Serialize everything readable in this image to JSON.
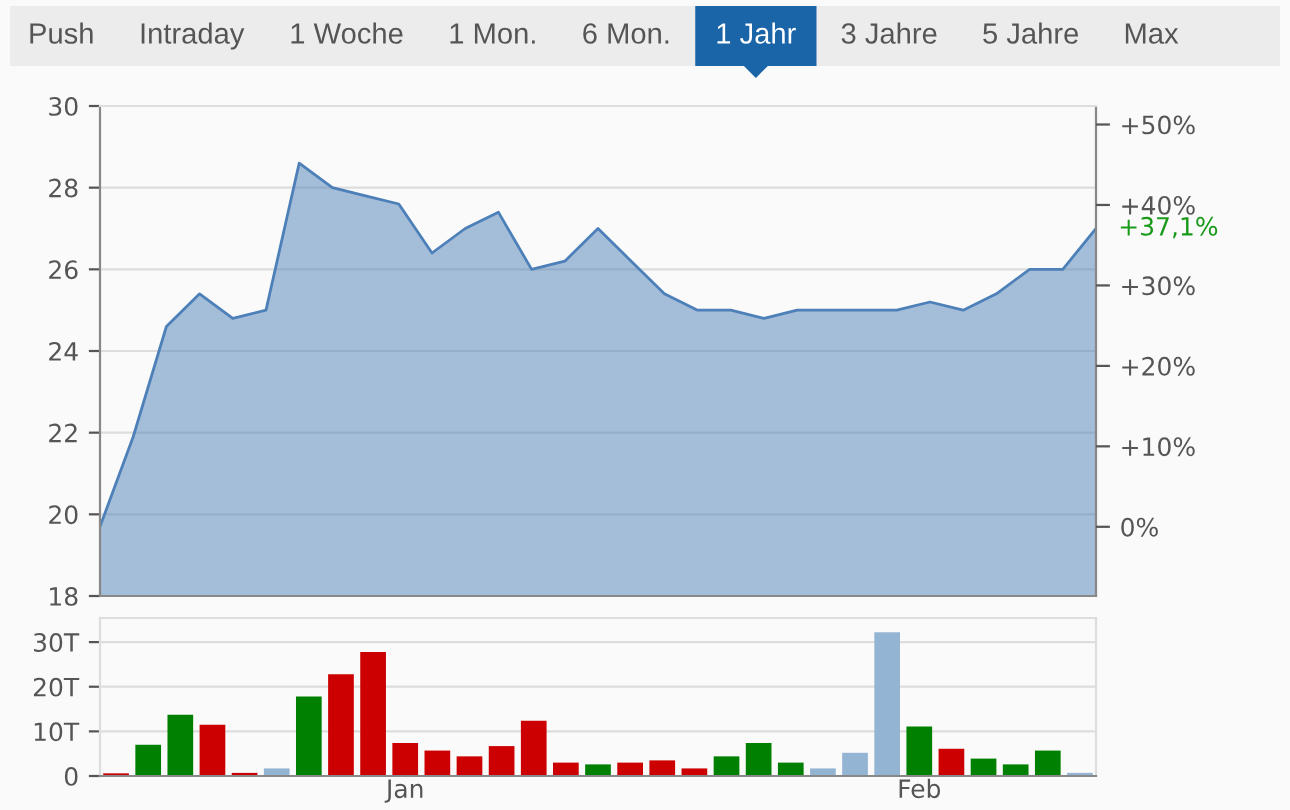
{
  "chart_data": [
    {
      "type": "other",
      "annotations": [
        "Push",
        "Intraday",
        "1 Woche",
        "1 Mon.",
        "6 Mon.",
        "1 Jahr",
        "3 Jahre",
        "5 Jahre",
        "Max"
      ]
    },
    {
      "type": "area",
      "categories": [
        null,
        null,
        null,
        null,
        null,
        null,
        null,
        null,
        null,
        null,
        null,
        null,
        null,
        null,
        null,
        null,
        null,
        null,
        null,
        null,
        null,
        null,
        null,
        null,
        null,
        null,
        null,
        null,
        null,
        null,
        null
      ],
      "series": [
        {
          "color": "#4d80b8",
          "values": [
            19.7,
            21.9,
            24.6,
            25.4,
            24.8,
            25.0,
            28.6,
            28.0,
            27.8,
            27.6,
            26.4,
            27.0,
            27.4,
            26.0,
            26.2,
            27.0,
            26.2,
            25.4,
            25.0,
            25.0,
            24.8,
            25.0,
            25.0,
            25.0,
            25.0,
            25.2,
            25.0,
            25.4,
            26.0,
            26.0,
            27.0
          ]
        }
      ],
      "ylim": [
        18,
        30
      ],
      "yticks": [
        18,
        20,
        22,
        24,
        26,
        28,
        30
      ],
      "y2lim": [
        -8.6,
        52.3
      ],
      "y2ticks": [
        {
          "value": 0,
          "label": "0%"
        },
        {
          "value": 10,
          "label": "+10%"
        },
        {
          "value": 20,
          "label": "+20%"
        },
        {
          "value": 30,
          "label": "+30%"
        },
        {
          "value": 40,
          "label": "+40%"
        },
        {
          "value": 50,
          "label": "+50%"
        }
      ],
      "annotations": [
        "+37,1%"
      ],
      "grid": "y"
    },
    {
      "type": "bar",
      "categories": [
        null,
        null,
        null,
        null,
        null,
        null,
        null,
        null,
        null,
        "Jan",
        null,
        null,
        null,
        null,
        null,
        null,
        null,
        null,
        null,
        null,
        null,
        null,
        null,
        null,
        null,
        "Feb",
        null,
        null,
        null,
        null,
        null
      ],
      "values": [
        0.6,
        7.0,
        13.7,
        11.5,
        0.7,
        1.7,
        17.8,
        22.8,
        27.8,
        7.4,
        5.7,
        4.4,
        6.7,
        12.4,
        3.0,
        2.6,
        3.0,
        3.5,
        1.7,
        4.4,
        7.4,
        3.0,
        1.7,
        5.2,
        32.2,
        11.1,
        6.1,
        3.9,
        2.6,
        5.7,
        0.7
      ],
      "colors": [
        "#cc0000",
        "#008000",
        "#008000",
        "#cc0000",
        "#cc0000",
        "#94b4d4",
        "#008000",
        "#cc0000",
        "#cc0000",
        "#cc0000",
        "#cc0000",
        "#cc0000",
        "#cc0000",
        "#cc0000",
        "#cc0000",
        "#008000",
        "#cc0000",
        "#cc0000",
        "#cc0000",
        "#008000",
        "#008000",
        "#008000",
        "#94b4d4",
        "#94b4d4",
        "#94b4d4",
        "#008000",
        "#cc0000",
        "#008000",
        "#008000",
        "#008000",
        "#94b4d4"
      ],
      "ylim": [
        0,
        35.4
      ],
      "yticks": [
        0,
        {
          "value": 10,
          "label": "10T"
        },
        {
          "value": 20,
          "label": "20T"
        },
        {
          "value": 30,
          "label": "30T"
        }
      ],
      "grid": "y"
    }
  ]
}
